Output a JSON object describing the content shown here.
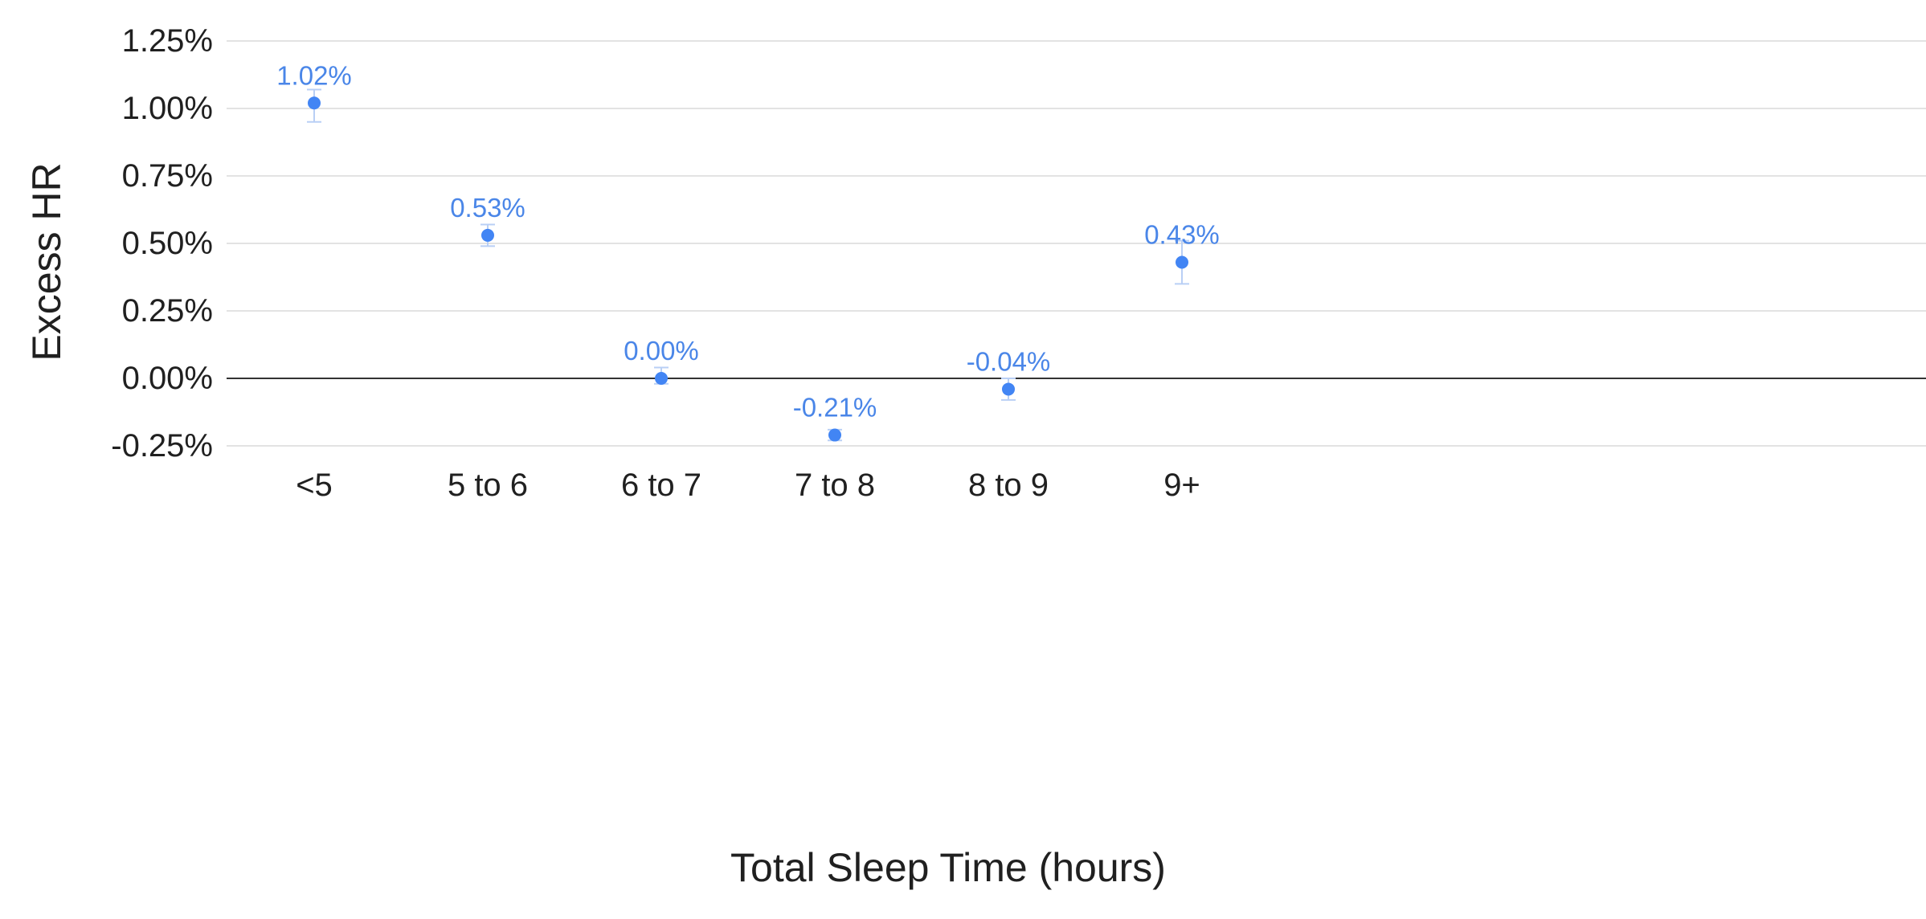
{
  "chart_data": {
    "type": "scatter",
    "title": "",
    "xlabel": "Total Sleep Time (hours)",
    "ylabel": "Excess HR",
    "categories": [
      "<5",
      "5 to 6",
      "6 to 7",
      "7 to 8",
      "8 to 9",
      "9+"
    ],
    "series": [
      {
        "values": [
          1.02,
          0.53,
          0.0,
          -0.21,
          -0.04,
          0.43
        ],
        "error_low": [
          0.95,
          0.49,
          -0.02,
          -0.23,
          -0.08,
          0.35
        ],
        "error_high": [
          1.07,
          0.57,
          0.04,
          -0.19,
          0.0,
          0.51
        ],
        "data_labels": [
          "1.02%",
          "0.53%",
          "0.00%",
          "-0.21%",
          "-0.04%",
          "0.43%"
        ],
        "color": "#4285f4"
      }
    ],
    "ylim": [
      -0.25,
      1.25
    ],
    "yticks": [
      1.25,
      1.0,
      0.75,
      0.5,
      0.25,
      0.0,
      -0.25
    ],
    "ytick_labels": [
      "1.25%",
      "1.00%",
      "0.75%",
      "0.50%",
      "0.25%",
      "0.00%",
      "-0.25%"
    ],
    "grid": true,
    "legend": "none",
    "colors": {
      "point": "#4285f4",
      "label": "#4a86e8",
      "errorbar": "#b9cff5",
      "grid": "#dadada",
      "zero_line": "#333333",
      "text": "#202020"
    }
  }
}
